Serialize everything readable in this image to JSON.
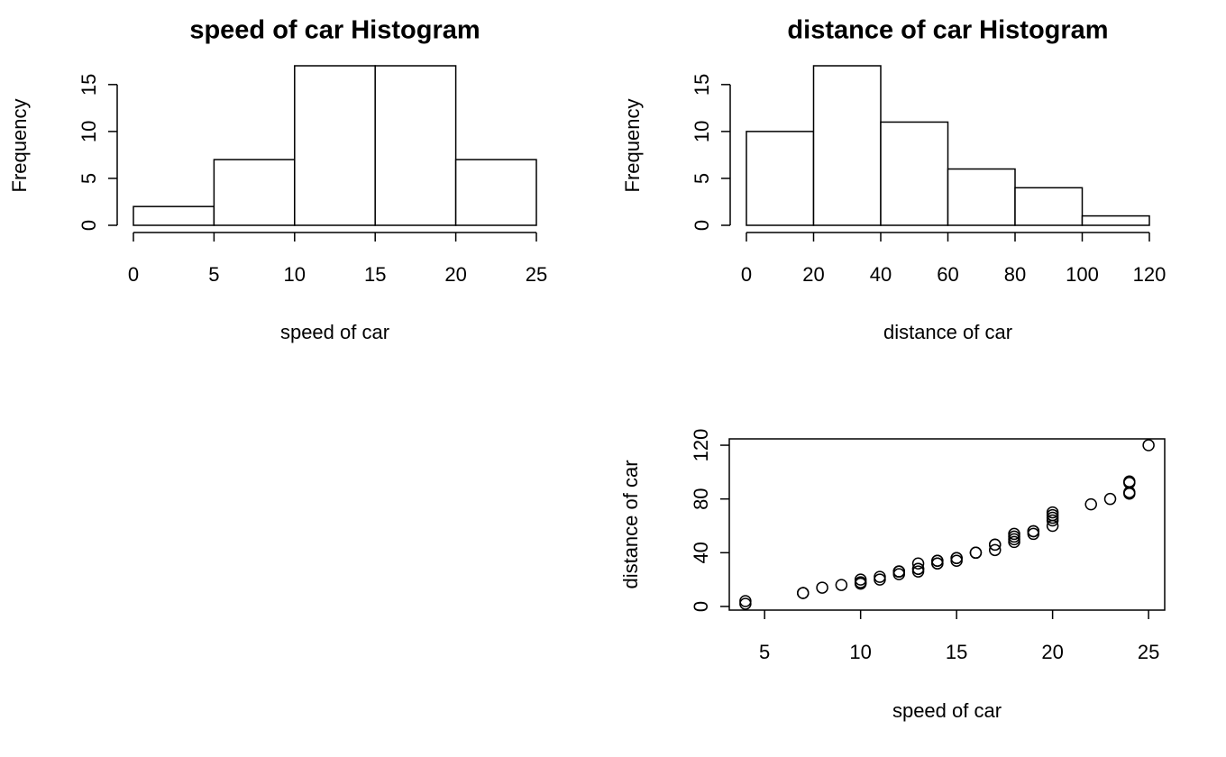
{
  "chart_data": [
    {
      "type": "histogram",
      "title": "speed of car Histogram",
      "xlabel": "speed of car",
      "ylabel": "Frequency",
      "bins": [
        0,
        5,
        10,
        15,
        20,
        25
      ],
      "values": [
        2,
        7,
        17,
        17,
        7
      ],
      "color": "#ffffff",
      "xlim": [
        0,
        25
      ],
      "xticks": [
        0,
        5,
        10,
        15,
        20,
        25
      ],
      "ylim": [
        0,
        17
      ],
      "yticks": [
        0,
        5,
        10,
        15
      ]
    },
    {
      "type": "histogram",
      "title": "distance of car Histogram",
      "xlabel": "distance of car",
      "ylabel": "Frequency",
      "bins": [
        0,
        20,
        40,
        60,
        80,
        100,
        120
      ],
      "values": [
        10,
        17,
        11,
        6,
        4,
        1
      ],
      "color": "#ffffff",
      "xlim": [
        0,
        120
      ],
      "xticks": [
        0,
        20,
        40,
        60,
        80,
        100,
        120
      ],
      "ylim": [
        0,
        17
      ],
      "yticks": [
        0,
        5,
        10,
        15
      ]
    },
    {
      "type": "scatter",
      "xlabel": "speed of car",
      "ylabel": "distance of car",
      "x": [
        4,
        4,
        7,
        7,
        8,
        9,
        10,
        10,
        10,
        11,
        11,
        12,
        12,
        12,
        12,
        13,
        13,
        13,
        13,
        14,
        14,
        14,
        14,
        15,
        15,
        15,
        16,
        16,
        17,
        17,
        17,
        18,
        18,
        18,
        18,
        19,
        19,
        19,
        20,
        20,
        20,
        20,
        20,
        22,
        23,
        24,
        24,
        24,
        24,
        25
      ],
      "values": [
        2,
        4,
        10,
        10,
        14,
        16,
        17,
        18,
        20,
        20,
        22,
        24,
        26,
        26,
        26,
        26,
        28,
        28,
        32,
        32,
        32,
        34,
        34,
        34,
        36,
        36,
        40,
        40,
        42,
        46,
        46,
        48,
        50,
        52,
        54,
        54,
        56,
        56,
        60,
        64,
        66,
        68,
        70,
        76,
        80,
        84,
        85,
        92,
        93,
        120
      ],
      "color": "#000000",
      "xlim": [
        3.16,
        25.84
      ],
      "xticks": [
        5,
        10,
        15,
        20,
        25
      ],
      "ylim": [
        -2.72,
        124.72
      ],
      "yticks": [
        0,
        40,
        80,
        120
      ]
    }
  ]
}
